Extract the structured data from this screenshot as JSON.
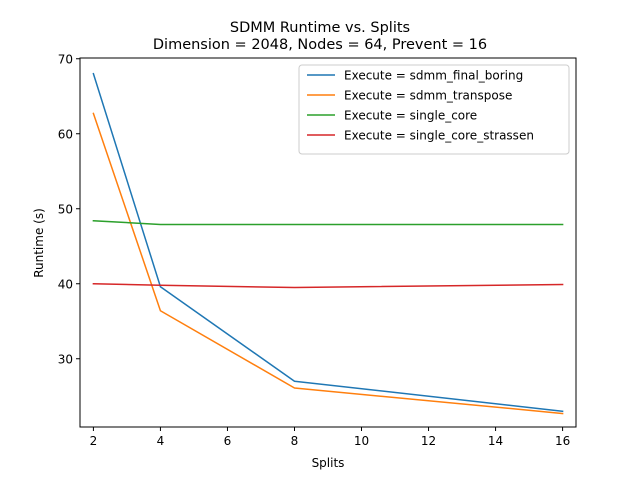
{
  "chart_data": {
    "type": "line",
    "title": "SDMM Runtime vs. Splits",
    "subtitle": "Dimension = 2048, Nodes = 64, Prevent = 16",
    "xlabel": "Splits",
    "ylabel": "Runtime (s)",
    "xlim": [
      1.6,
      16.4
    ],
    "ylim": [
      20.9,
      70.1
    ],
    "xticks": [
      2,
      4,
      6,
      8,
      10,
      12,
      14,
      16
    ],
    "yticks": [
      30,
      40,
      50,
      60,
      70
    ],
    "x": [
      2,
      4,
      8,
      16
    ],
    "grid": false,
    "legend_position": "top-right",
    "series": [
      {
        "name": "Execute = sdmm_final_boring",
        "color": "#1f77b4",
        "values": [
          68.0,
          39.6,
          27.0,
          23.0
        ]
      },
      {
        "name": "Execute = sdmm_transpose",
        "color": "#ff7f0e",
        "values": [
          62.7,
          36.4,
          26.1,
          22.7
        ]
      },
      {
        "name": "Execute = single_core",
        "color": "#2ca02c",
        "values": [
          48.4,
          47.9,
          47.9,
          47.9
        ]
      },
      {
        "name": "Execute = single_core_strassen",
        "color": "#d62728",
        "values": [
          40.0,
          39.8,
          39.5,
          39.9
        ]
      }
    ]
  }
}
